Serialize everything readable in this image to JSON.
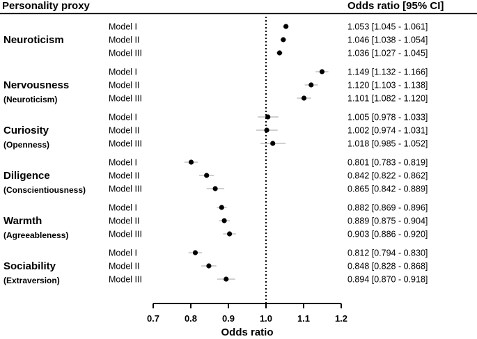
{
  "chart_data": {
    "type": "forest",
    "header_left": "Personality proxy",
    "header_right": "Odds ratio [95% CI]",
    "xlabel": "Odds ratio",
    "xlim": [
      0.7,
      1.2
    ],
    "xticks": [
      "0.7",
      "0.8",
      "0.9",
      "1.0",
      "1.1",
      "1.2"
    ],
    "reference_line": 1.0,
    "groups": [
      {
        "name": "Neuroticism",
        "subtitle": "",
        "rows": [
          {
            "model": "Model I",
            "or": 1.053,
            "lo": 1.045,
            "hi": 1.061,
            "label": "1.053 [1.045 - 1.061]"
          },
          {
            "model": "Model II",
            "or": 1.046,
            "lo": 1.038,
            "hi": 1.054,
            "label": "1.046 [1.038 - 1.054]"
          },
          {
            "model": "Model III",
            "or": 1.036,
            "lo": 1.027,
            "hi": 1.045,
            "label": "1.036 [1.027 - 1.045]"
          }
        ]
      },
      {
        "name": "Nervousness",
        "subtitle": "(Neuroticism)",
        "rows": [
          {
            "model": "Model I",
            "or": 1.149,
            "lo": 1.132,
            "hi": 1.166,
            "label": "1.149 [1.132 - 1.166]"
          },
          {
            "model": "Model II",
            "or": 1.12,
            "lo": 1.103,
            "hi": 1.138,
            "label": "1.120 [1.103 - 1.138]"
          },
          {
            "model": "Model III",
            "or": 1.101,
            "lo": 1.082,
            "hi": 1.12,
            "label": "1.101 [1.082 - 1.120]"
          }
        ]
      },
      {
        "name": "Curiosity",
        "subtitle": "(Openness)",
        "rows": [
          {
            "model": "Model I",
            "or": 1.005,
            "lo": 0.978,
            "hi": 1.033,
            "label": "1.005 [0.978 - 1.033]"
          },
          {
            "model": "Model II",
            "or": 1.002,
            "lo": 0.974,
            "hi": 1.031,
            "label": "1.002 [0.974 - 1.031]"
          },
          {
            "model": "Model III",
            "or": 1.018,
            "lo": 0.985,
            "hi": 1.052,
            "label": "1.018 [0.985 - 1.052]"
          }
        ]
      },
      {
        "name": "Diligence",
        "subtitle": "(Conscientiousness)",
        "rows": [
          {
            "model": "Model I",
            "or": 0.801,
            "lo": 0.783,
            "hi": 0.819,
            "label": "0.801 [0.783 - 0.819]"
          },
          {
            "model": "Model II",
            "or": 0.842,
            "lo": 0.822,
            "hi": 0.862,
            "label": "0.842 [0.822 - 0.862]"
          },
          {
            "model": "Model III",
            "or": 0.865,
            "lo": 0.842,
            "hi": 0.889,
            "label": "0.865 [0.842 - 0.889]"
          }
        ]
      },
      {
        "name": "Warmth",
        "subtitle": "(Agreeableness)",
        "rows": [
          {
            "model": "Model I",
            "or": 0.882,
            "lo": 0.869,
            "hi": 0.896,
            "label": "0.882 [0.869 - 0.896]"
          },
          {
            "model": "Model II",
            "or": 0.889,
            "lo": 0.875,
            "hi": 0.904,
            "label": "0.889 [0.875 - 0.904]"
          },
          {
            "model": "Model III",
            "or": 0.903,
            "lo": 0.886,
            "hi": 0.92,
            "label": "0.903 [0.886 - 0.920]"
          }
        ]
      },
      {
        "name": "Sociability",
        "subtitle": "(Extraversion)",
        "rows": [
          {
            "model": "Model I",
            "or": 0.812,
            "lo": 0.794,
            "hi": 0.83,
            "label": "0.812 [0.794 - 0.830]"
          },
          {
            "model": "Model II",
            "or": 0.848,
            "lo": 0.828,
            "hi": 0.868,
            "label": "0.848 [0.828 - 0.868]"
          },
          {
            "model": "Model III",
            "or": 0.894,
            "lo": 0.87,
            "hi": 0.918,
            "label": "0.894 [0.870 - 0.918]"
          }
        ]
      }
    ]
  }
}
